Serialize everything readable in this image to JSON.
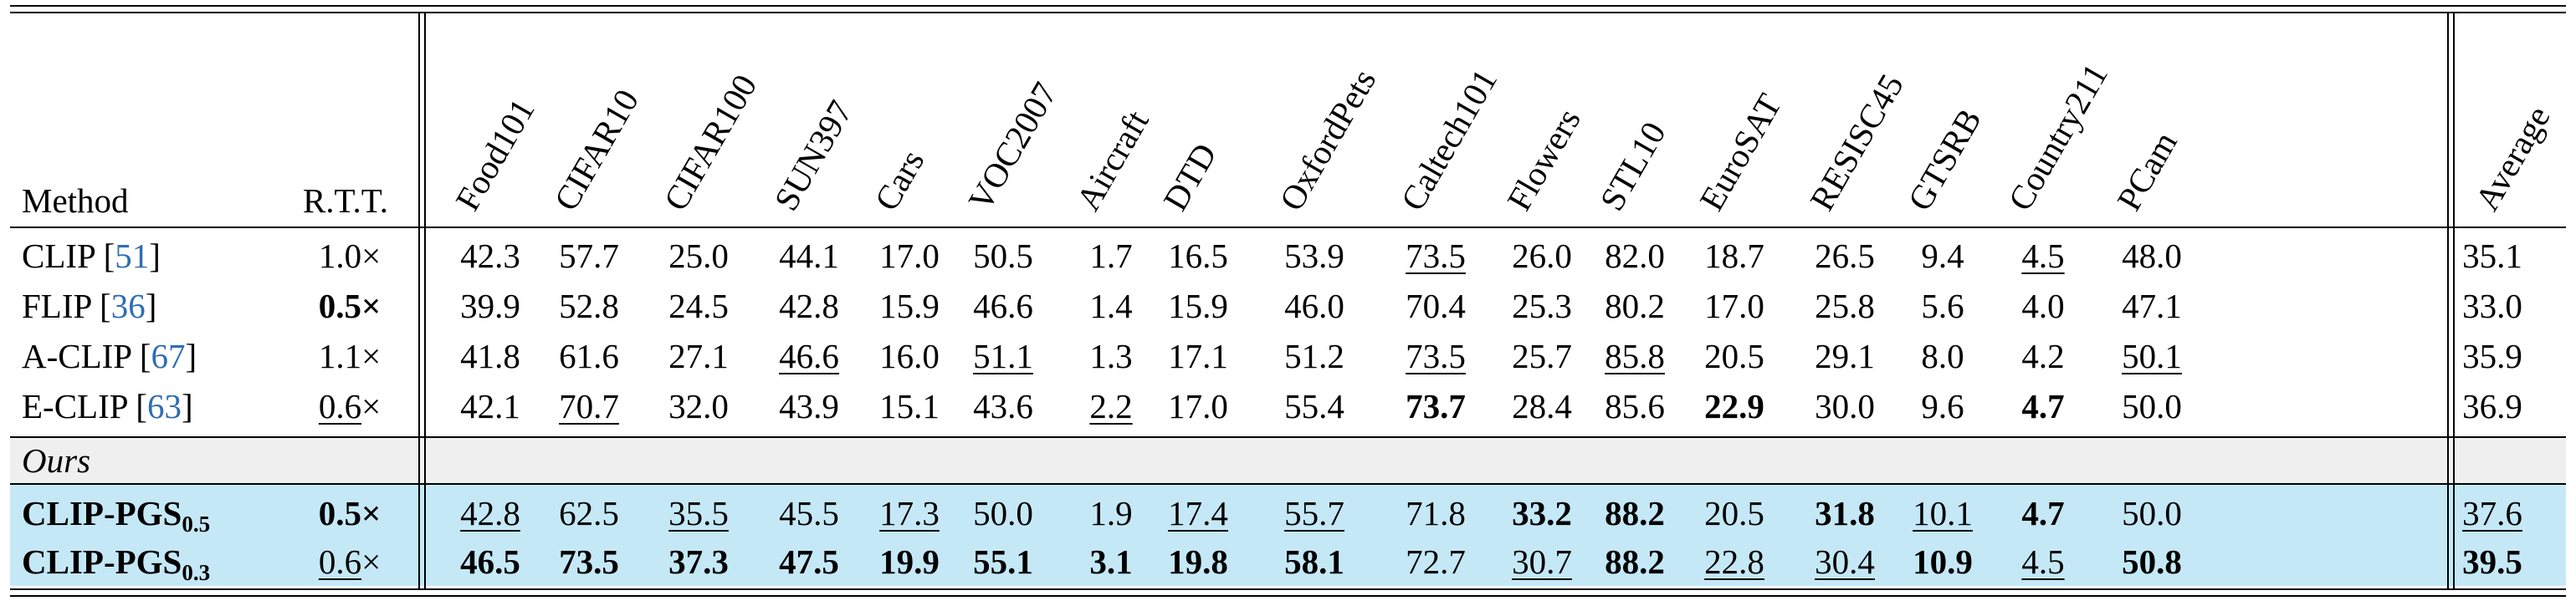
{
  "table": {
    "method_header": "Method",
    "rtt_header": "R.T.T.",
    "datasets": [
      "Food101",
      "CIFAR10",
      "CIFAR100",
      "SUN397",
      "Cars",
      "VOC2007",
      "Aircraft",
      "DTD",
      "OxfordPets",
      "Caltech101",
      "Flowers",
      "STL10",
      "EuroSAT",
      "RESISC45",
      "GTSRB",
      "Country211",
      "PCam"
    ],
    "average_header": "Average",
    "baseline_rows": [
      {
        "name": "CLIP",
        "ref": "51",
        "rtt": "1.0",
        "values": [
          "42.3",
          "57.7",
          "25.0",
          "44.1",
          "17.0",
          "50.5",
          "1.7",
          "16.5",
          "53.9",
          "73.5",
          "26.0",
          "82.0",
          "18.7",
          "26.5",
          "9.4",
          "4.5",
          "48.0"
        ],
        "average": "35.1"
      },
      {
        "name": "FLIP",
        "ref": "36",
        "rtt": "0.5",
        "values": [
          "39.9",
          "52.8",
          "24.5",
          "42.8",
          "15.9",
          "46.6",
          "1.4",
          "15.9",
          "46.0",
          "70.4",
          "25.3",
          "80.2",
          "17.0",
          "25.8",
          "5.6",
          "4.0",
          "47.1"
        ],
        "average": "33.0"
      },
      {
        "name": "A-CLIP",
        "ref": "67",
        "rtt": "1.1",
        "values": [
          "41.8",
          "61.6",
          "27.1",
          "46.6",
          "16.0",
          "51.1",
          "1.3",
          "17.1",
          "51.2",
          "73.5",
          "25.7",
          "85.8",
          "20.5",
          "29.1",
          "8.0",
          "4.2",
          "50.1"
        ],
        "average": "35.9"
      },
      {
        "name": "E-CLIP",
        "ref": "63",
        "rtt": "0.6",
        "values": [
          "42.1",
          "70.7",
          "32.0",
          "43.9",
          "15.1",
          "43.6",
          "2.2",
          "17.0",
          "55.4",
          "73.7",
          "28.4",
          "85.6",
          "22.9",
          "30.0",
          "9.6",
          "4.7",
          "50.0"
        ],
        "average": "36.9"
      }
    ],
    "ours_label": "Ours",
    "ours_rows": [
      {
        "name": "CLIP-PGS",
        "subscript": "0.5",
        "rtt": "0.5",
        "values": [
          "42.8",
          "62.5",
          "35.5",
          "45.5",
          "17.3",
          "50.0",
          "1.9",
          "17.4",
          "55.7",
          "71.8",
          "33.2",
          "88.2",
          "20.5",
          "31.8",
          "10.1",
          "4.7",
          "50.0"
        ],
        "average": "37.6"
      },
      {
        "name": "CLIP-PGS",
        "subscript": "0.3",
        "rtt": "0.6",
        "values": [
          "46.5",
          "73.5",
          "37.3",
          "47.5",
          "19.9",
          "55.1",
          "3.1",
          "19.8",
          "58.1",
          "72.7",
          "30.7",
          "88.2",
          "22.8",
          "30.4",
          "10.9",
          "4.5",
          "50.8"
        ],
        "average": "39.5"
      }
    ],
    "times_symbol": "×"
  },
  "colors": {
    "ours_highlight": "#c5e8f7",
    "ours_label_band": "#efefef",
    "citation": "#2f6db3"
  }
}
